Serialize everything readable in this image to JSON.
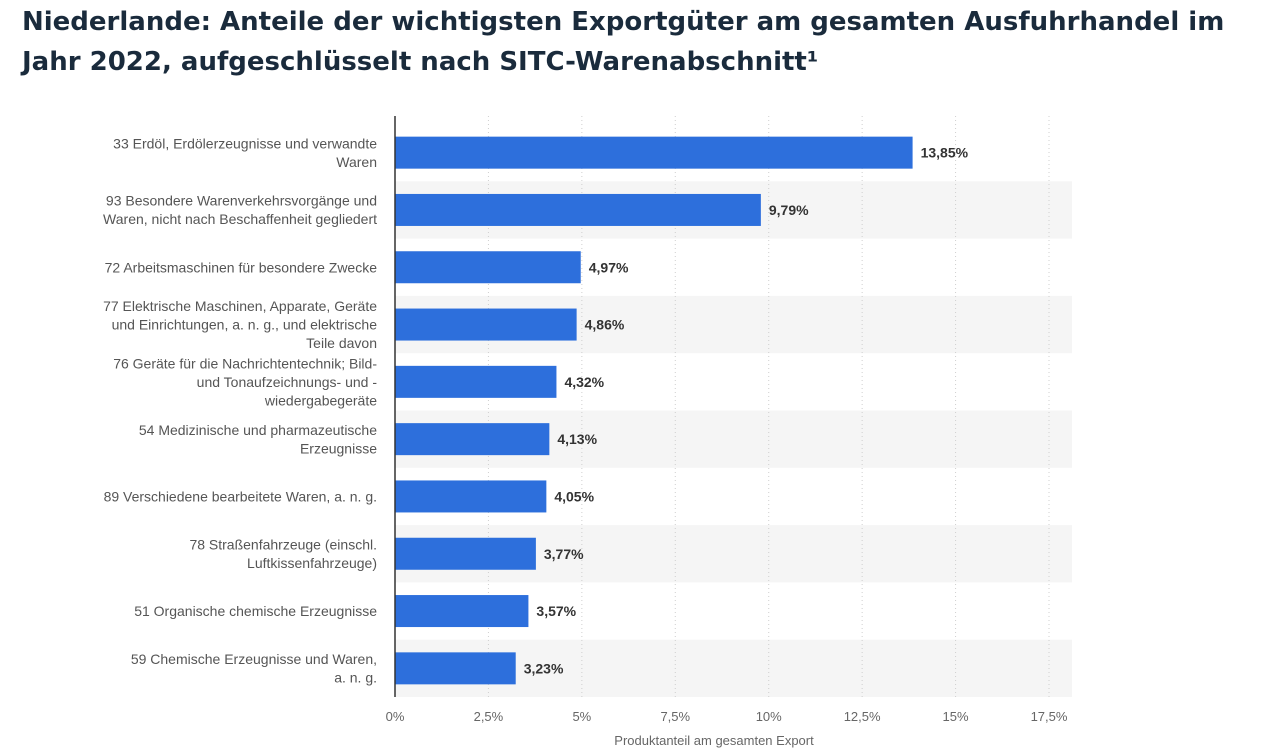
{
  "page": {
    "title": "Niederlande: Anteile der wichtigsten Exportgüter am gesamten Ausfuhrhandel im Jahr 2022, aufgeschlüsselt nach SITC-Warenabschnitt¹"
  },
  "colors": {
    "bar": "#2d6fdc",
    "band": "#f5f5f5",
    "grid": "#cfcfcf",
    "axis": "#333333"
  },
  "chart_data": {
    "type": "bar",
    "orientation": "horizontal",
    "title": "Niederlande: Anteile der wichtigsten Exportgüter am gesamten Ausfuhrhandel im Jahr 2022, aufgeschlüsselt nach SITC-Warenabschnitt¹",
    "xlabel": "Produktanteil am gesamten Export",
    "ylabel": "",
    "xlim": [
      0,
      17.5
    ],
    "ticks": [
      0,
      2.5,
      5,
      7.5,
      10,
      12.5,
      15,
      17.5
    ],
    "tick_labels": [
      "0%",
      "2,5%",
      "5%",
      "7,5%",
      "10%",
      "12,5%",
      "15%",
      "17,5%"
    ],
    "grid": "vertical dotted",
    "categories": [
      [
        "33 Erdöl, Erdölerzeugnisse und verwandte",
        "Waren"
      ],
      [
        "93 Besondere Warenverkehrsvorgänge und",
        "Waren, nicht nach Beschaffenheit gegliedert"
      ],
      [
        "72 Arbeitsmaschinen für besondere Zwecke"
      ],
      [
        "77 Elektrische Maschinen, Apparate, Geräte",
        "und Einrichtungen, a. n. g., und elektrische",
        "Teile davon"
      ],
      [
        "76 Geräte für die Nachrichtentechnik; Bild-",
        "und Tonaufzeichnungs- und -",
        "wiedergabegeräte"
      ],
      [
        "54 Medizinische und pharmazeutische",
        "Erzeugnisse"
      ],
      [
        "89 Verschiedene bearbeitete Waren, a. n. g."
      ],
      [
        "78 Straßenfahrzeuge (einschl.",
        "Luftkissenfahrzeuge)"
      ],
      [
        "51 Organische chemische Erzeugnisse"
      ],
      [
        "59 Chemische Erzeugnisse und Waren,",
        "a. n. g."
      ]
    ],
    "values": [
      13.85,
      9.79,
      4.97,
      4.86,
      4.32,
      4.13,
      4.05,
      3.77,
      3.57,
      3.23
    ],
    "value_labels": [
      "13,85%",
      "9,79%",
      "4,97%",
      "4,86%",
      "4,32%",
      "4,13%",
      "4,05%",
      "3,77%",
      "3,57%",
      "3,23%"
    ]
  }
}
